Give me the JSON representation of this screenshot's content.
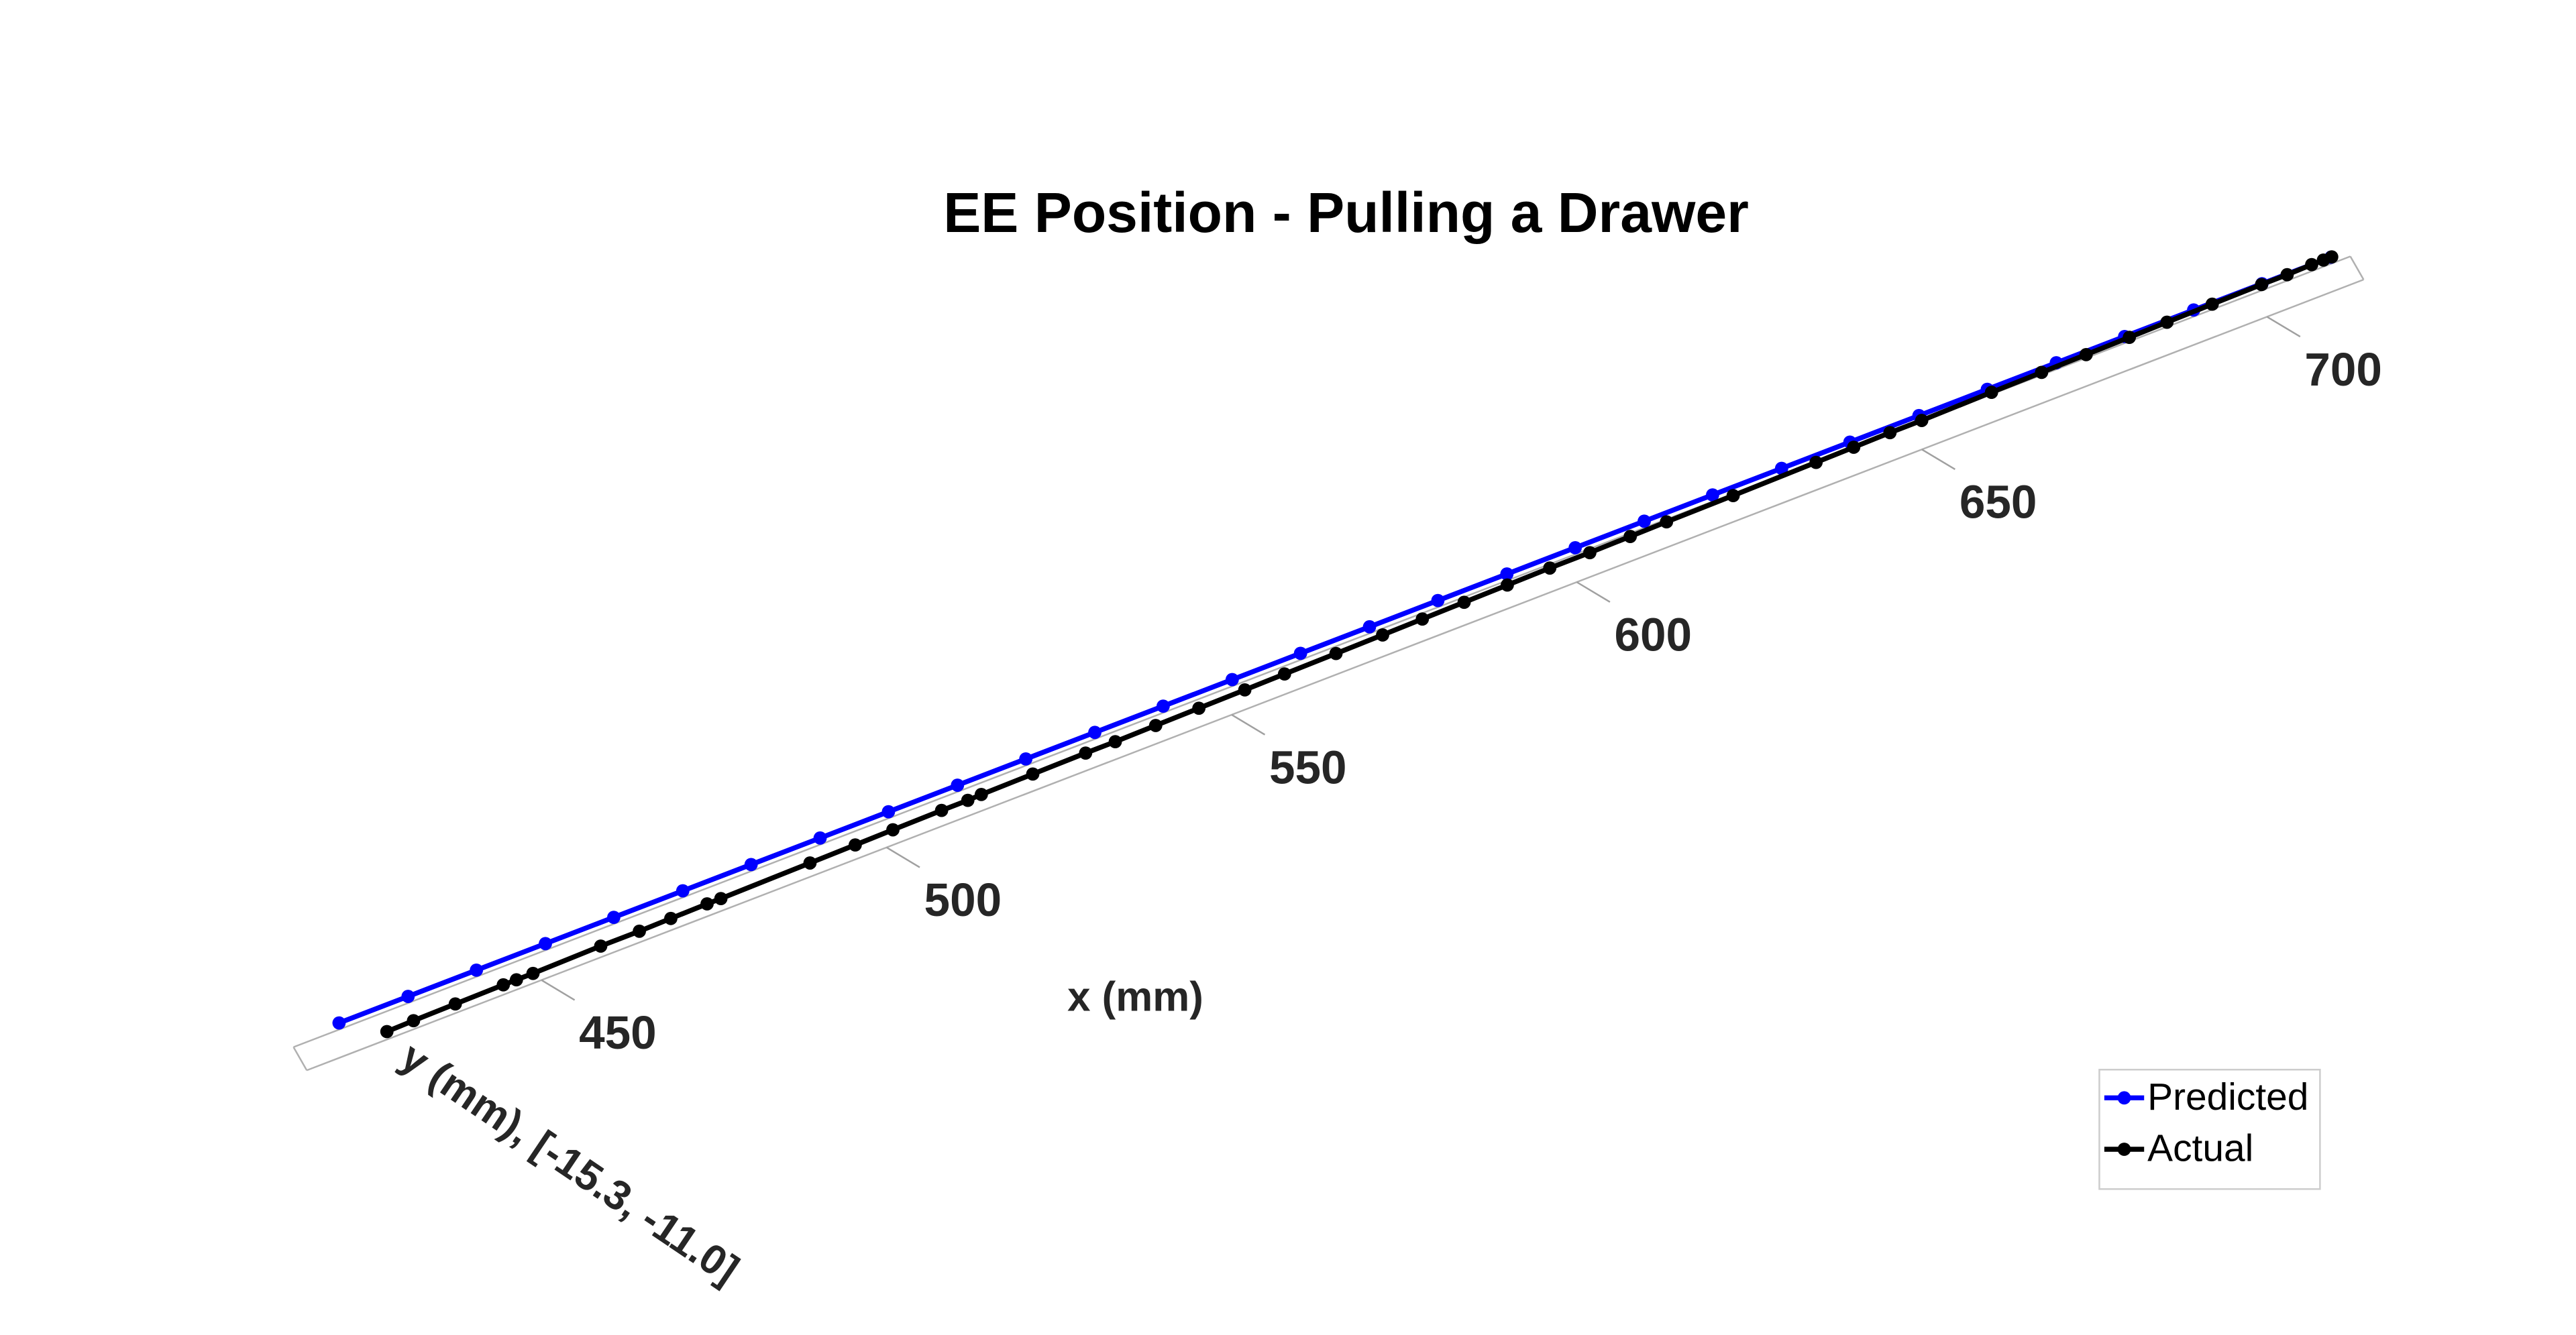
{
  "chart_data": {
    "type": "line3d",
    "title": "EE Position - Pulling a Drawer",
    "xlabel": "x (mm)",
    "ylabel": "y (mm),  [-15.3, -11.0]",
    "xlim": [
      416,
      714
    ],
    "ylim": [
      -15.3,
      -11.0
    ],
    "xticks": [
      450,
      500,
      550,
      600,
      650,
      700
    ],
    "legend": "southeast",
    "series": [
      {
        "name": "Predicted",
        "color": "#0000ff",
        "x": [
          422.6,
          432.6,
          442.5,
          452.5,
          462.4,
          472.4,
          482.3,
          492.3,
          502.2,
          512.2,
          522.1,
          532.1,
          542.0,
          552.0,
          561.9,
          571.9,
          581.8,
          591.8,
          601.7,
          611.7,
          621.6,
          631.6,
          641.5,
          651.5,
          661.4,
          671.4,
          681.3,
          691.3,
          701.2,
          711.2
        ],
        "y": [
          -15.3,
          -15.3,
          -15.3,
          -15.3,
          -15.3,
          -15.3,
          -15.3,
          -15.3,
          -15.3,
          -15.3,
          -15.3,
          -15.3,
          -15.3,
          -15.3,
          -15.3,
          -15.3,
          -15.3,
          -15.3,
          -15.3,
          -15.3,
          -15.3,
          -15.3,
          -15.3,
          -15.3,
          -15.3,
          -15.3,
          -15.3,
          -15.3,
          -15.3,
          -15.3
        ]
      },
      {
        "name": "Actual",
        "color": "#000000",
        "x": [
          427.7,
          431.6,
          437.7,
          444.7,
          446.6,
          449.0,
          458.9,
          464.5,
          469.1,
          474.4,
          476.4,
          489.4,
          496.0,
          501.5,
          508.6,
          512.4,
          514.4,
          521.9,
          529.6,
          533.9,
          539.8,
          546.1,
          552.8,
          558.6,
          566.1,
          572.9,
          578.7,
          584.8,
          591.1,
          597.3,
          603.1,
          609.0,
          614.3,
          624.0,
          636.1,
          641.6,
          646.9,
          651.5,
          661.7,
          669.0,
          675.5,
          681.8,
          687.3,
          693.9,
          701.1,
          704.8,
          708.4,
          710.1,
          711.3
        ],
        "y": [
          -11.2,
          -11.3,
          -11.4,
          -11.5,
          -11.5,
          -11.5,
          -11.7,
          -11.7,
          -11.8,
          -11.9,
          -11.9,
          -12.1,
          -12.2,
          -12.3,
          -12.4,
          -12.4,
          -12.5,
          -12.6,
          -12.7,
          -12.7,
          -12.8,
          -12.9,
          -13.0,
          -13.1,
          -13.2,
          -13.3,
          -13.4,
          -13.5,
          -13.6,
          -13.7,
          -13.7,
          -13.8,
          -13.9,
          -14.0,
          -14.2,
          -14.3,
          -14.4,
          -14.4,
          -14.6,
          -14.7,
          -14.8,
          -14.9,
          -15.0,
          -15.1,
          -15.2,
          -15.2,
          -15.3,
          -15.3,
          -15.3
        ]
      }
    ]
  }
}
